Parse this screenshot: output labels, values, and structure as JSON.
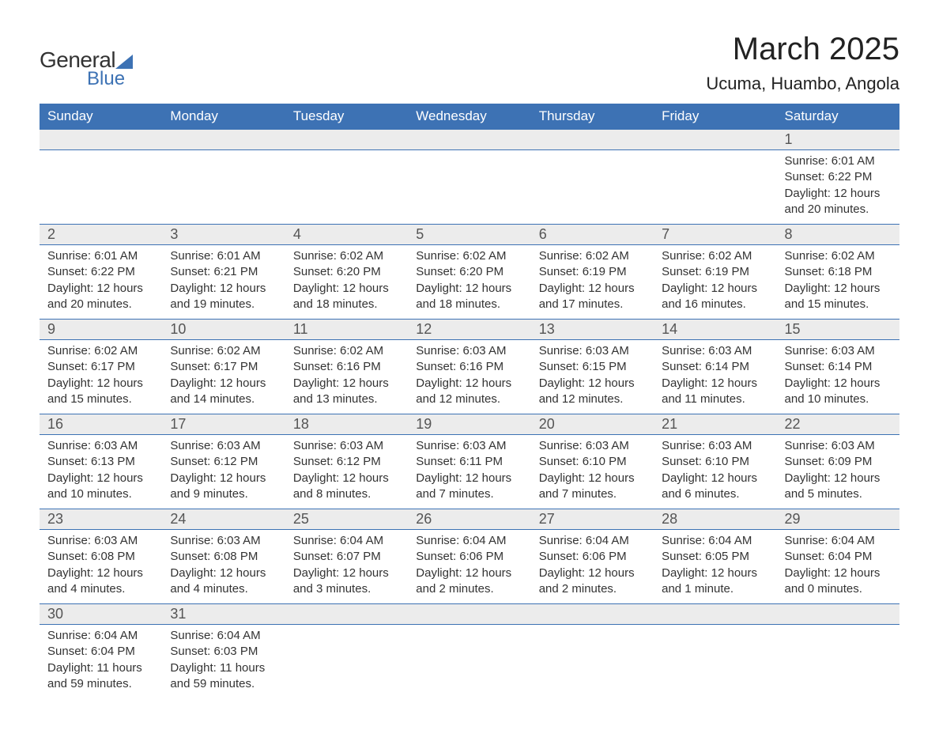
{
  "logo": {
    "text1": "General",
    "text2": "Blue"
  },
  "title": "March 2025",
  "location": "Ucuma, Huambo, Angola",
  "colors": {
    "header_bg": "#3d72b4",
    "header_fg": "#ffffff",
    "daynum_bg": "#ececec",
    "border": "#3d72b4",
    "text": "#333333",
    "title": "#222222"
  },
  "typography": {
    "title_fontsize": 40,
    "location_fontsize": 22,
    "dayheader_fontsize": 17,
    "daynum_fontsize": 18,
    "body_fontsize": 15,
    "font_family": "Arial"
  },
  "layout": {
    "columns": 7,
    "rows": 6,
    "start_day_index": 6
  },
  "day_headers": [
    "Sunday",
    "Monday",
    "Tuesday",
    "Wednesday",
    "Thursday",
    "Friday",
    "Saturday"
  ],
  "days": [
    {
      "n": 1,
      "sunrise": "6:01 AM",
      "sunset": "6:22 PM",
      "daylight": "12 hours and 20 minutes."
    },
    {
      "n": 2,
      "sunrise": "6:01 AM",
      "sunset": "6:22 PM",
      "daylight": "12 hours and 20 minutes."
    },
    {
      "n": 3,
      "sunrise": "6:01 AM",
      "sunset": "6:21 PM",
      "daylight": "12 hours and 19 minutes."
    },
    {
      "n": 4,
      "sunrise": "6:02 AM",
      "sunset": "6:20 PM",
      "daylight": "12 hours and 18 minutes."
    },
    {
      "n": 5,
      "sunrise": "6:02 AM",
      "sunset": "6:20 PM",
      "daylight": "12 hours and 18 minutes."
    },
    {
      "n": 6,
      "sunrise": "6:02 AM",
      "sunset": "6:19 PM",
      "daylight": "12 hours and 17 minutes."
    },
    {
      "n": 7,
      "sunrise": "6:02 AM",
      "sunset": "6:19 PM",
      "daylight": "12 hours and 16 minutes."
    },
    {
      "n": 8,
      "sunrise": "6:02 AM",
      "sunset": "6:18 PM",
      "daylight": "12 hours and 15 minutes."
    },
    {
      "n": 9,
      "sunrise": "6:02 AM",
      "sunset": "6:17 PM",
      "daylight": "12 hours and 15 minutes."
    },
    {
      "n": 10,
      "sunrise": "6:02 AM",
      "sunset": "6:17 PM",
      "daylight": "12 hours and 14 minutes."
    },
    {
      "n": 11,
      "sunrise": "6:02 AM",
      "sunset": "6:16 PM",
      "daylight": "12 hours and 13 minutes."
    },
    {
      "n": 12,
      "sunrise": "6:03 AM",
      "sunset": "6:16 PM",
      "daylight": "12 hours and 12 minutes."
    },
    {
      "n": 13,
      "sunrise": "6:03 AM",
      "sunset": "6:15 PM",
      "daylight": "12 hours and 12 minutes."
    },
    {
      "n": 14,
      "sunrise": "6:03 AM",
      "sunset": "6:14 PM",
      "daylight": "12 hours and 11 minutes."
    },
    {
      "n": 15,
      "sunrise": "6:03 AM",
      "sunset": "6:14 PM",
      "daylight": "12 hours and 10 minutes."
    },
    {
      "n": 16,
      "sunrise": "6:03 AM",
      "sunset": "6:13 PM",
      "daylight": "12 hours and 10 minutes."
    },
    {
      "n": 17,
      "sunrise": "6:03 AM",
      "sunset": "6:12 PM",
      "daylight": "12 hours and 9 minutes."
    },
    {
      "n": 18,
      "sunrise": "6:03 AM",
      "sunset": "6:12 PM",
      "daylight": "12 hours and 8 minutes."
    },
    {
      "n": 19,
      "sunrise": "6:03 AM",
      "sunset": "6:11 PM",
      "daylight": "12 hours and 7 minutes."
    },
    {
      "n": 20,
      "sunrise": "6:03 AM",
      "sunset": "6:10 PM",
      "daylight": "12 hours and 7 minutes."
    },
    {
      "n": 21,
      "sunrise": "6:03 AM",
      "sunset": "6:10 PM",
      "daylight": "12 hours and 6 minutes."
    },
    {
      "n": 22,
      "sunrise": "6:03 AM",
      "sunset": "6:09 PM",
      "daylight": "12 hours and 5 minutes."
    },
    {
      "n": 23,
      "sunrise": "6:03 AM",
      "sunset": "6:08 PM",
      "daylight": "12 hours and 4 minutes."
    },
    {
      "n": 24,
      "sunrise": "6:03 AM",
      "sunset": "6:08 PM",
      "daylight": "12 hours and 4 minutes."
    },
    {
      "n": 25,
      "sunrise": "6:04 AM",
      "sunset": "6:07 PM",
      "daylight": "12 hours and 3 minutes."
    },
    {
      "n": 26,
      "sunrise": "6:04 AM",
      "sunset": "6:06 PM",
      "daylight": "12 hours and 2 minutes."
    },
    {
      "n": 27,
      "sunrise": "6:04 AM",
      "sunset": "6:06 PM",
      "daylight": "12 hours and 2 minutes."
    },
    {
      "n": 28,
      "sunrise": "6:04 AM",
      "sunset": "6:05 PM",
      "daylight": "12 hours and 1 minute."
    },
    {
      "n": 29,
      "sunrise": "6:04 AM",
      "sunset": "6:04 PM",
      "daylight": "12 hours and 0 minutes."
    },
    {
      "n": 30,
      "sunrise": "6:04 AM",
      "sunset": "6:04 PM",
      "daylight": "11 hours and 59 minutes."
    },
    {
      "n": 31,
      "sunrise": "6:04 AM",
      "sunset": "6:03 PM",
      "daylight": "11 hours and 59 minutes."
    }
  ],
  "labels": {
    "sunrise": "Sunrise:",
    "sunset": "Sunset:",
    "daylight": "Daylight:"
  }
}
